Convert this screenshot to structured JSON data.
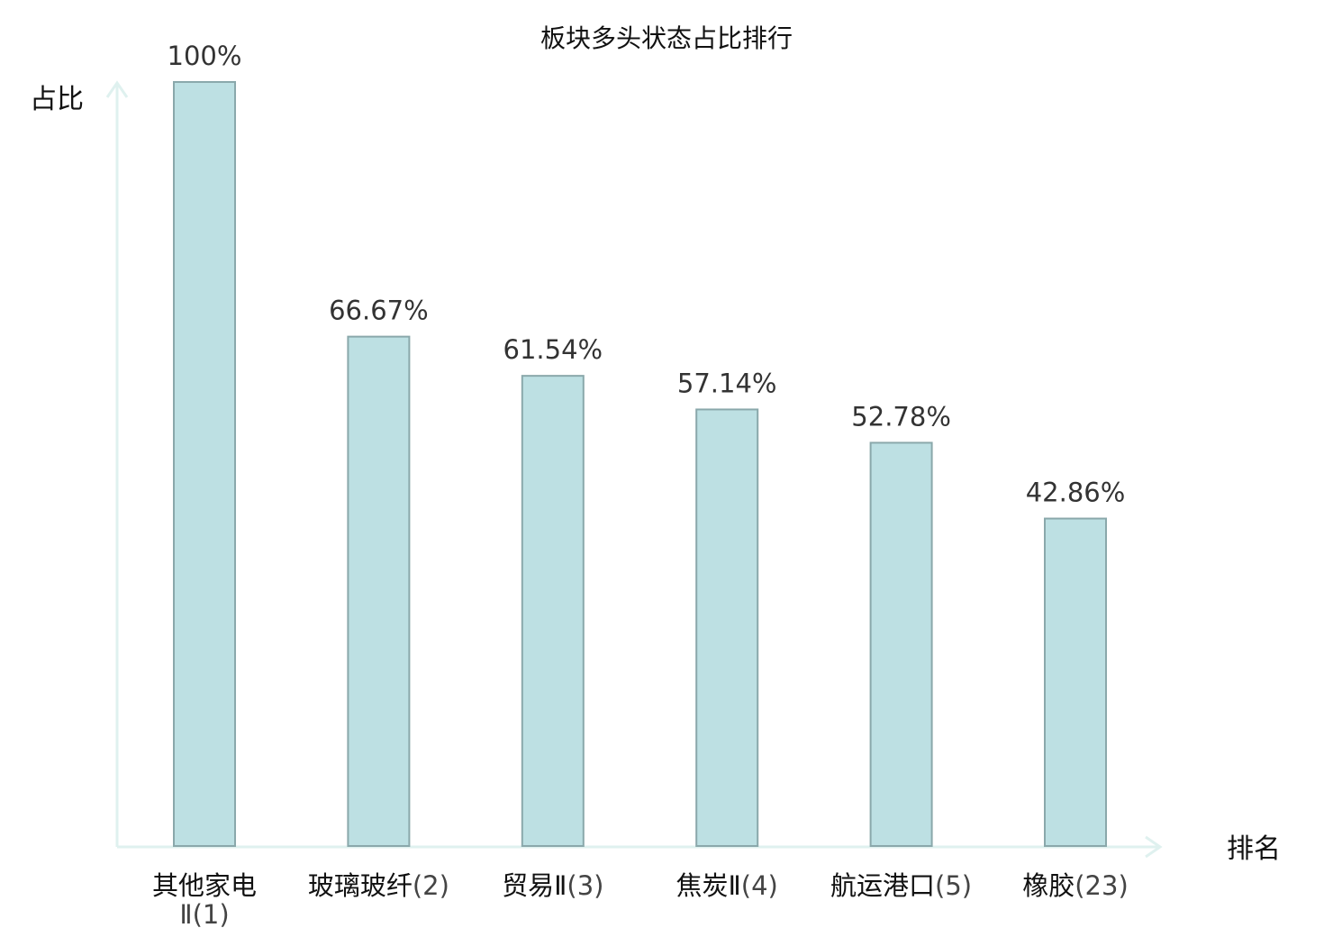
{
  "chart_data": {
    "type": "bar",
    "title": "板块多头状态占比排行",
    "ylabel": "占比",
    "xlabel": "排名",
    "ylim": [
      0,
      100
    ],
    "grid": false,
    "unit": "%",
    "categories": [
      {
        "name": "其他家电Ⅱ",
        "rank": "(1)",
        "value": 100,
        "label": "100%",
        "highlight": false
      },
      {
        "name": "玻璃玻纤",
        "rank": "(2)",
        "value": 66.67,
        "label": "66.67%",
        "highlight": false
      },
      {
        "name": "贸易Ⅱ",
        "rank": "(3)",
        "value": 61.54,
        "label": "61.54%",
        "highlight": false
      },
      {
        "name": "焦炭Ⅱ",
        "rank": "(4)",
        "value": 57.14,
        "label": "57.14%",
        "highlight": false
      },
      {
        "name": "航运港口",
        "rank": "(5)",
        "value": 52.78,
        "label": "52.78%",
        "highlight": false
      },
      {
        "name": "橡胶",
        "rank": "(23)",
        "value": 42.86,
        "label": "42.86%",
        "highlight": true
      }
    ],
    "colors": {
      "bar_fill": "#bde0e3",
      "bar_stroke": "#8aa8ab",
      "axis": "#dff1ef",
      "highlight_text": "#e0191e"
    }
  }
}
